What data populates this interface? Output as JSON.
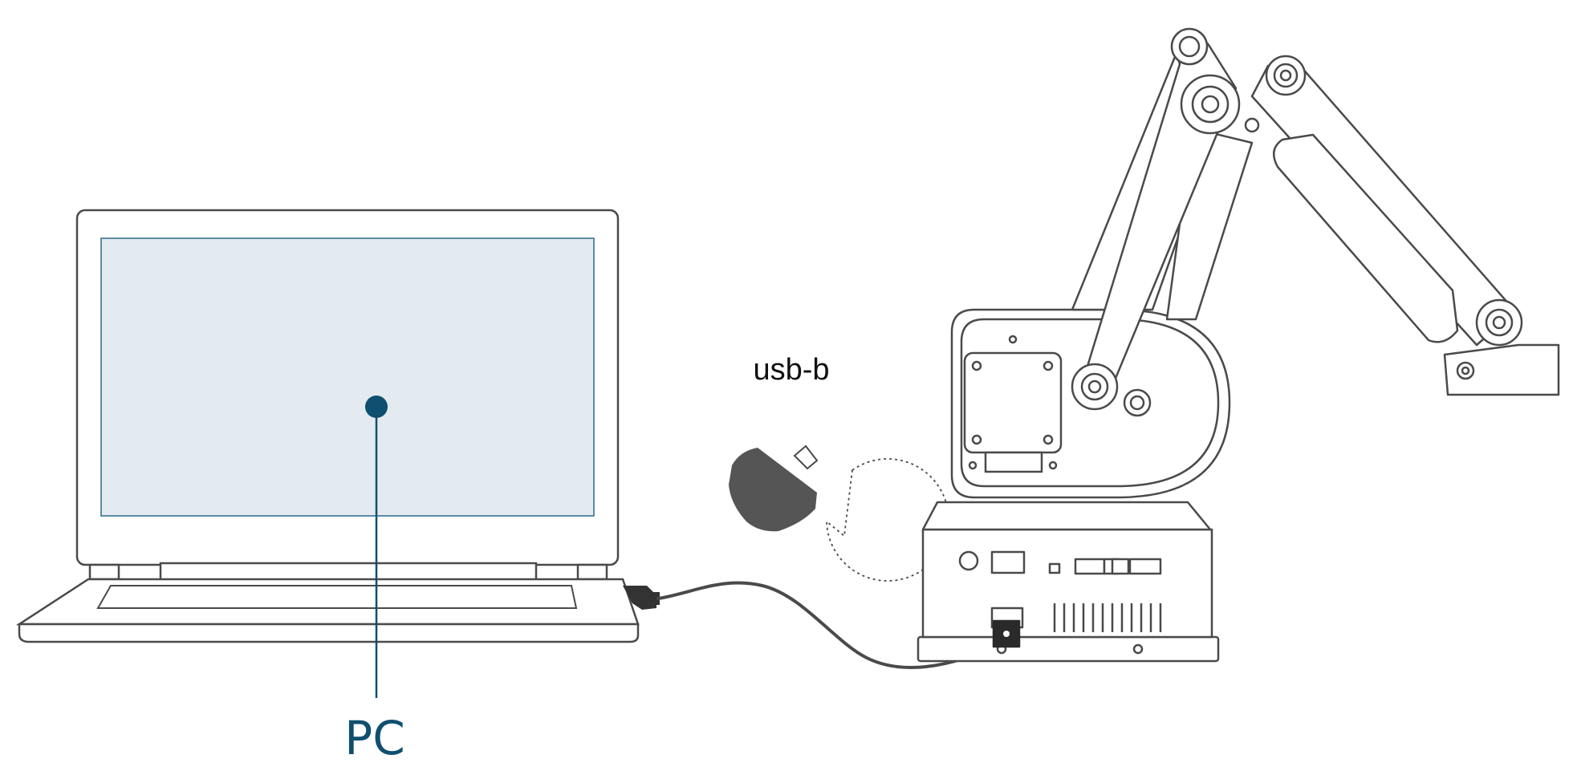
{
  "labels": {
    "pc": "PC",
    "connector": "usb-b"
  },
  "icons": [
    "laptop-icon",
    "robot-arm-icon",
    "usb-b-connector-icon",
    "usb-cable-icon"
  ],
  "colors": {
    "line": "#4a4a4a",
    "accent": "#0f4f6f",
    "screen": "#e3eaf0",
    "connector": "#555555"
  }
}
